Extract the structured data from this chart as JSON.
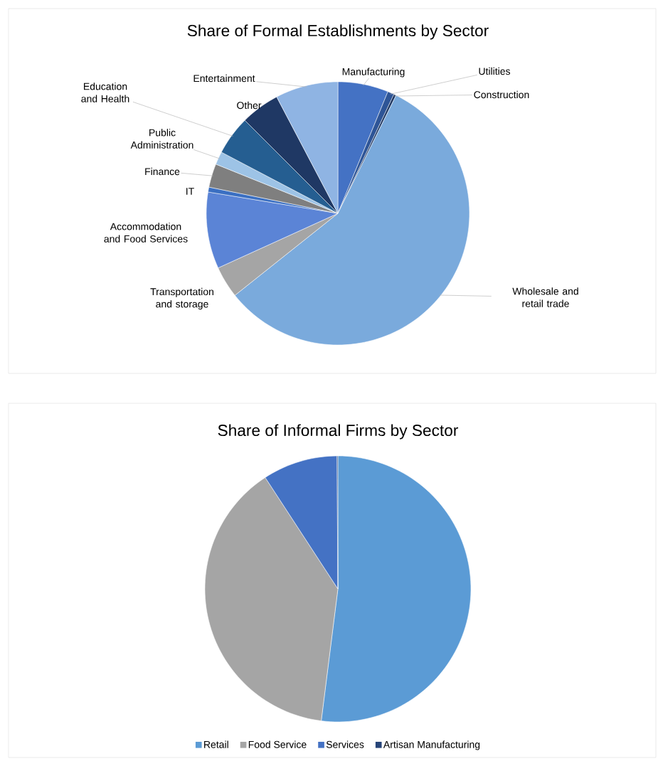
{
  "chart_data": [
    {
      "type": "pie",
      "title": "Share of Formal Establishments by Sector",
      "categories": [
        "Manufacturing",
        "Utilities",
        "Construction",
        "Wholesale and retail trade",
        "Transportation and storage",
        "Accommodation and Food Services",
        "IT",
        "Finance",
        "Public Administration",
        "Education and Health",
        "Other",
        "Entertainment"
      ],
      "values": [
        6.2,
        0.8,
        0.3,
        57.0,
        3.9,
        9.4,
        0.6,
        2.9,
        1.6,
        4.8,
        4.8,
        7.7
      ],
      "colors": [
        "#4472c4",
        "#2e5597",
        "#1f3864",
        "#7aaadc",
        "#a5a5a5",
        "#5b84d6",
        "#3a6fc2",
        "#7f7f7f",
        "#9dc3e6",
        "#255e91",
        "#1f3864",
        "#8fb4e3"
      ]
    },
    {
      "type": "pie",
      "title": "Share of Informal Firms by Sector",
      "categories": [
        "Retail",
        "Food Service",
        "Services",
        "Artisan Manufacturing"
      ],
      "values": [
        52.0,
        38.8,
        9.1,
        0.1
      ],
      "colors": [
        "#5b9bd5",
        "#a5a5a5",
        "#4472c4",
        "#264478"
      ],
      "legend": "bottom"
    }
  ]
}
